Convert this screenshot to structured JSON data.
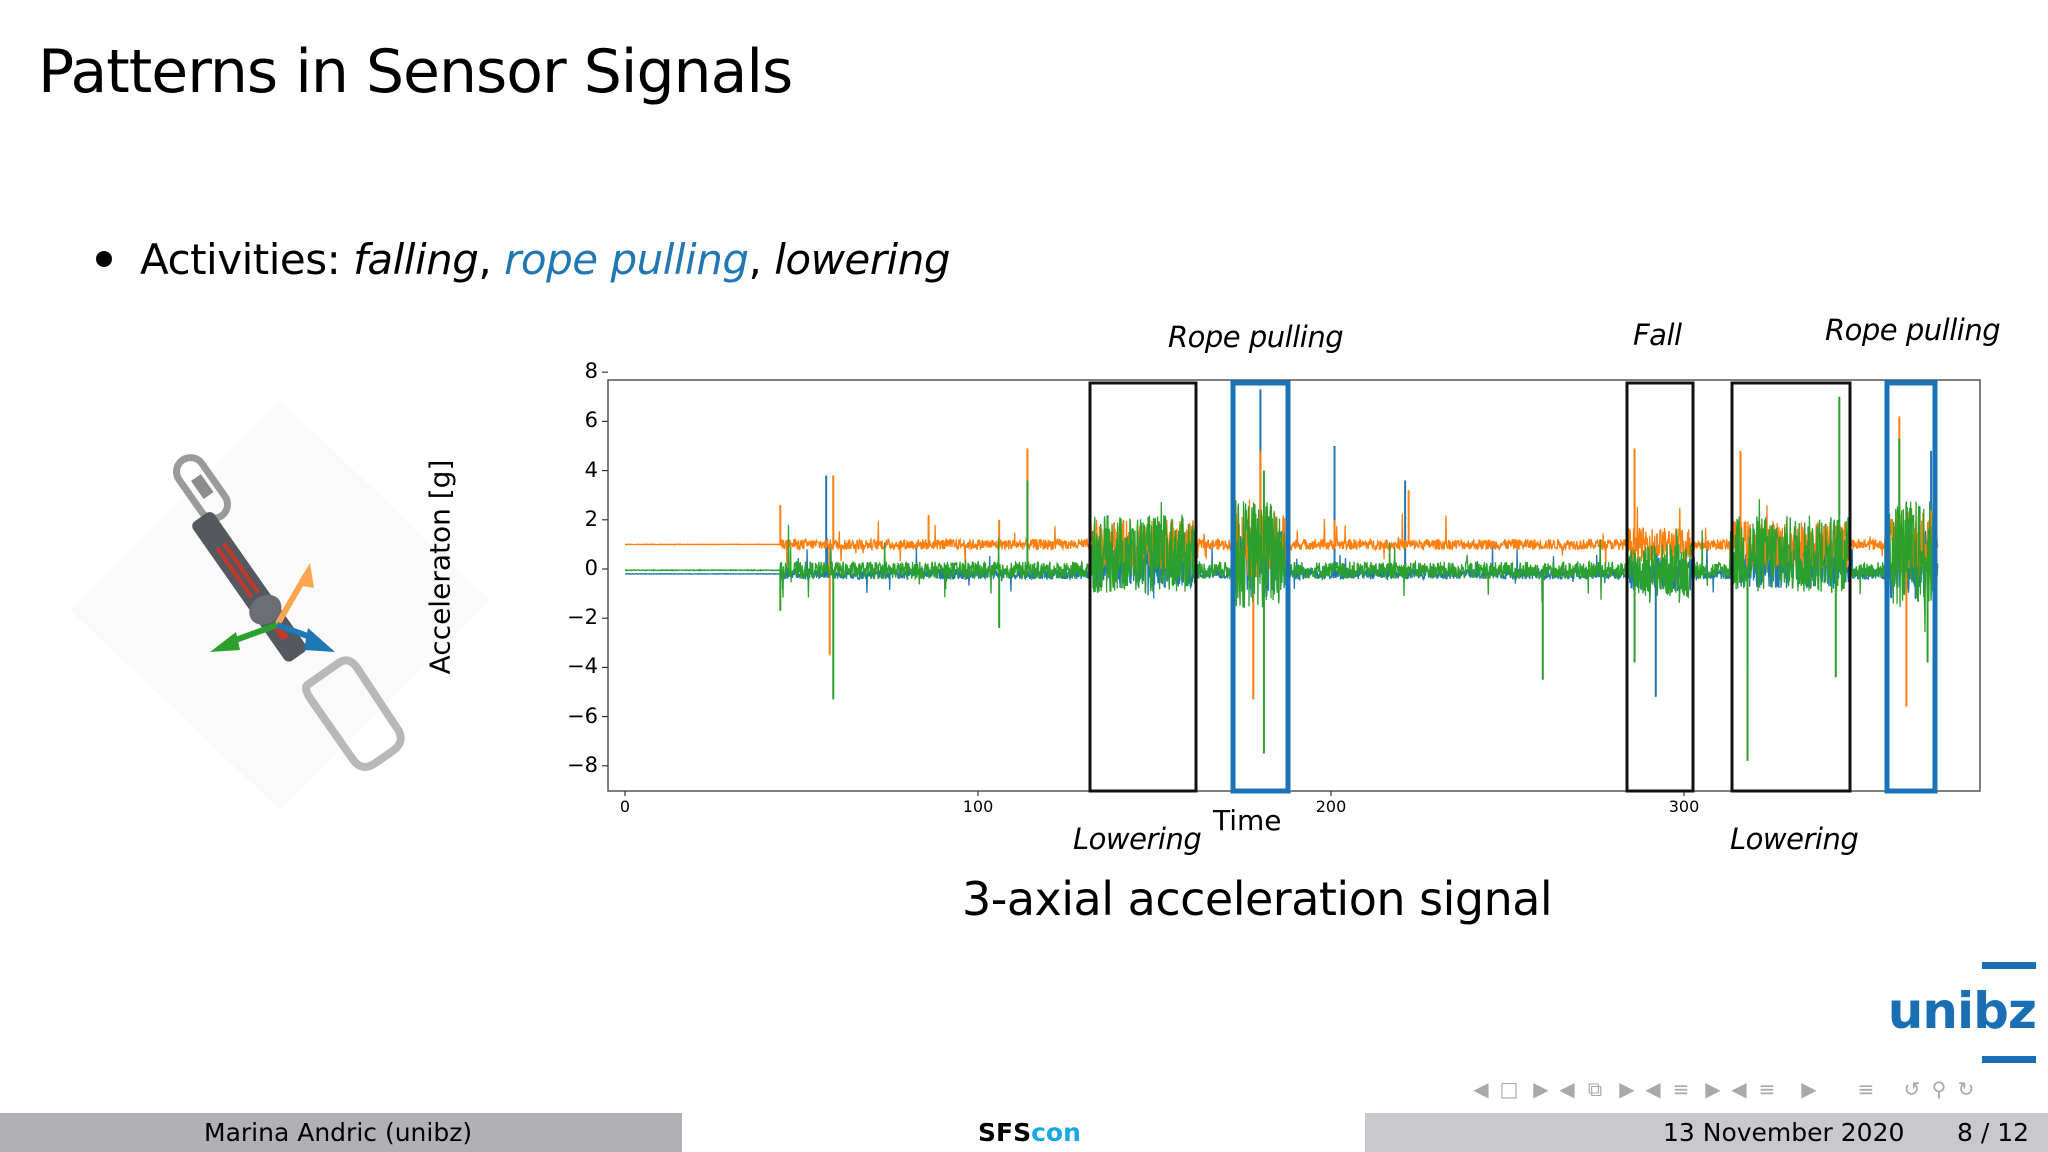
{
  "slide": {
    "title": "Patterns in Sensor Signals",
    "bullet": {
      "prefix": "Activities: ",
      "items": [
        {
          "text": "falling",
          "style": "italic",
          "color": "#000000"
        },
        {
          "text": "rope pulling",
          "style": "italic",
          "color": "#1f77b4"
        },
        {
          "text": "lowering",
          "style": "italic",
          "color": "#000000"
        }
      ],
      "separator": ", "
    },
    "image": {
      "description": "quickdraw carabiner sensor with 3 axis arrows",
      "arrow_colors": [
        "#ff9f40",
        "#2ca02c",
        "#1f77b4"
      ]
    },
    "caption": "3-axial acceleration signal",
    "logo": "unibz",
    "logo_color": "#1a6fb4"
  },
  "chart_data": {
    "type": "line",
    "title": "",
    "xlabel": "Time",
    "ylabel": "Acceleraton [g]",
    "xlim": [
      -2,
      388
    ],
    "ylim": [
      -8.8,
      8.2
    ],
    "x_ticks": [
      "0",
      "100",
      "200",
      "300"
    ],
    "y_ticks": [
      "8",
      "6",
      "4",
      "2",
      "0",
      "−2",
      "−4",
      "−6",
      "−8"
    ],
    "grid": false,
    "series": [
      {
        "name": "axis-1 (orange)",
        "color": "#ff7f0e",
        "baseline": 1.0,
        "note": "flat ~1 g until t≈44, then noisy around 1 g; spikes to ~4.9 at t≈114, ~4.9 at t≈286, ~6 at t≈363; dips to ~-3.5 at t≈58, ~-5.3 at t≈178"
      },
      {
        "name": "axis-2 (blue)",
        "color": "#1f77b4",
        "baseline": -0.2,
        "note": "flat ~-0.2 g until t≈44, then noisy; spikes to ~3.8 at t≈57, ~7.3 at t≈180, ~5 at t≈201, ~3.6 at t≈221; dips to ~-5.2 at t≈292"
      },
      {
        "name": "axis-3 (green)",
        "color": "#2ca02c",
        "baseline": 0.0,
        "note": "flat ~0 g until t≈44, then noisy; high-amplitude bursts in Lowering (t≈133–162, 314–347) and Rope pulling (t≈173–187, 358–373) windows; dips to ~-5.3 at t≈59, ~-7.5 at t≈181, ~-7.8 at t≈318, ~-4.4 at t≈343"
      }
    ],
    "regions": [
      {
        "label": "Lowering",
        "x": [
          132,
          162
        ],
        "color": "#000000",
        "label_pos": "below"
      },
      {
        "label": "Rope pulling",
        "x": [
          172,
          187
        ],
        "color": "#1f77b4",
        "label_pos": "above"
      },
      {
        "label": "Fall",
        "x": [
          284,
          303
        ],
        "color": "#000000",
        "label_pos": "above"
      },
      {
        "label": "Lowering",
        "x": [
          313,
          347
        ],
        "color": "#000000",
        "label_pos": "below"
      },
      {
        "label": "Rope pulling",
        "x": [
          357,
          371
        ],
        "color": "#1f77b4",
        "label_pos": "above"
      }
    ]
  },
  "navigation": {
    "icons": [
      "nav-prev-arrow",
      "frame-icon",
      "nav-next-arrow",
      "nav-prev-arrow",
      "subsection-icon",
      "nav-next-arrow",
      "nav-prev-arrow",
      "section-icon",
      "nav-next-arrow",
      "nav-prev-arrow",
      "section-list-icon",
      "nav-next-arrow",
      "toc-icon",
      "back-icon",
      "search-icon",
      "forward-icon"
    ]
  },
  "footer": {
    "author": "Marina Andric  (unibz)",
    "event_bold": "SFS",
    "event_light": "con",
    "date": "13 November 2020",
    "page": "8 / 12"
  }
}
